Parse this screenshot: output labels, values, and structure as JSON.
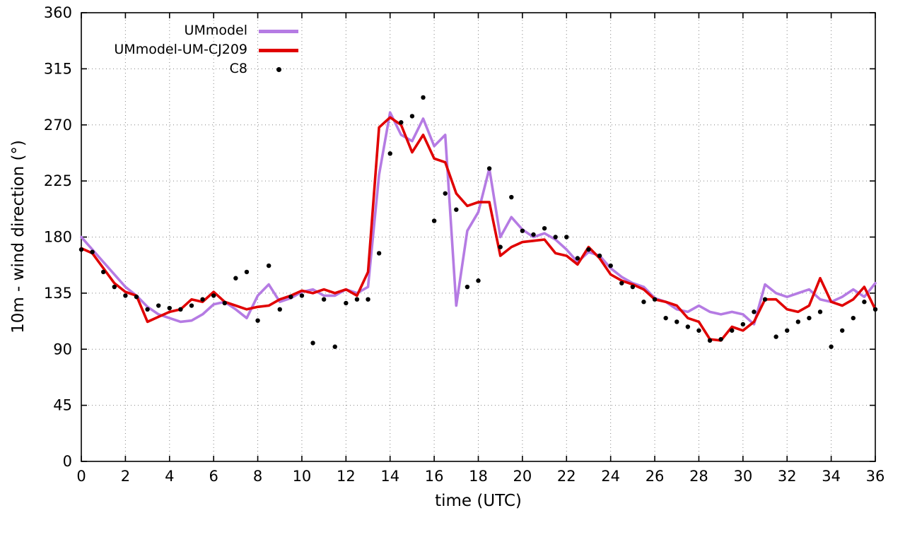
{
  "chart_data": {
    "type": "line",
    "title": "",
    "xlabel": "time (UTC)",
    "ylabel": "10m - wind direction (°)",
    "xlim": [
      0,
      36
    ],
    "ylim": [
      0,
      360
    ],
    "xticks": [
      0,
      2,
      4,
      6,
      8,
      10,
      12,
      14,
      16,
      18,
      20,
      22,
      24,
      26,
      28,
      30,
      32,
      34,
      36
    ],
    "yticks": [
      0,
      45,
      90,
      135,
      180,
      225,
      270,
      315,
      360
    ],
    "grid": true,
    "grid_style": "dotted",
    "legend_position": "top-left-inside",
    "x": [
      0,
      0.5,
      1,
      1.5,
      2,
      2.5,
      3,
      3.5,
      4,
      4.5,
      5,
      5.5,
      6,
      6.5,
      7,
      7.5,
      8,
      8.5,
      9,
      9.5,
      10,
      10.5,
      11,
      11.5,
      12,
      12.5,
      13,
      13.5,
      14,
      14.5,
      15,
      15.5,
      16,
      16.5,
      17,
      17.5,
      18,
      18.5,
      19,
      19.5,
      20,
      20.5,
      21,
      21.5,
      22,
      22.5,
      23,
      23.5,
      24,
      24.5,
      25,
      25.5,
      26,
      26.5,
      27,
      27.5,
      28,
      28.5,
      29,
      29.5,
      30,
      30.5,
      31,
      31.5,
      32,
      32.5,
      33,
      33.5,
      34,
      34.5,
      35,
      35.5,
      36
    ],
    "series": [
      {
        "name": "UMmodel",
        "style": "line",
        "color": "#b57be3",
        "values": [
          180,
          170,
          160,
          150,
          140,
          133,
          124,
          118,
          115,
          112,
          113,
          118,
          126,
          128,
          122,
          115,
          133,
          142,
          128,
          131,
          136,
          138,
          133,
          133,
          138,
          135,
          140,
          230,
          280,
          262,
          257,
          275,
          253,
          262,
          125,
          185,
          200,
          235,
          180,
          196,
          186,
          180,
          183,
          178,
          170,
          160,
          168,
          165,
          155,
          148,
          143,
          140,
          131,
          128,
          122,
          120,
          125,
          120,
          118,
          120,
          118,
          110,
          142,
          135,
          132,
          135,
          138,
          130,
          128,
          132,
          138,
          132,
          143
        ]
      },
      {
        "name": "UMmodel-UM-CJ209",
        "style": "line",
        "color": "#e00000",
        "values": [
          171,
          167,
          155,
          143,
          136,
          133,
          112,
          116,
          120,
          122,
          130,
          128,
          136,
          128,
          125,
          122,
          124,
          125,
          130,
          133,
          137,
          135,
          138,
          135,
          138,
          133,
          152,
          268,
          276,
          270,
          248,
          262,
          243,
          240,
          215,
          205,
          208,
          208,
          165,
          172,
          176,
          177,
          178,
          167,
          165,
          158,
          172,
          163,
          150,
          145,
          142,
          138,
          130,
          128,
          125,
          115,
          112,
          98,
          97,
          108,
          105,
          112,
          130,
          130,
          122,
          120,
          125,
          147,
          128,
          125,
          130,
          140,
          122
        ]
      },
      {
        "name": "C8",
        "style": "points",
        "color": "#000000",
        "values": [
          170,
          168,
          152,
          140,
          133,
          132,
          122,
          125,
          123,
          122,
          125,
          130,
          133,
          127,
          147,
          152,
          113,
          157,
          122,
          132,
          133,
          95,
          130,
          92,
          127,
          130,
          130,
          167,
          247,
          272,
          277,
          292,
          193,
          215,
          202,
          140,
          145,
          235,
          172,
          212,
          185,
          182,
          187,
          180,
          180,
          163,
          170,
          165,
          157,
          143,
          140,
          128,
          130,
          115,
          112,
          108,
          105,
          97,
          98,
          105,
          110,
          120,
          130,
          100,
          105,
          112,
          115,
          120,
          92,
          105,
          115,
          128,
          122
        ]
      }
    ]
  }
}
